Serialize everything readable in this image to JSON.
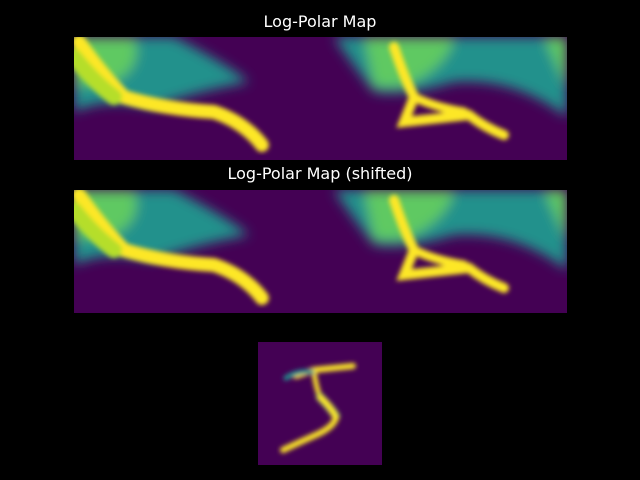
{
  "figure": {
    "background": "#000000",
    "text_color": "#ffffff"
  },
  "chart_data": [
    {
      "type": "heatmap",
      "title": "Log-Polar Map",
      "colormap": "viridis",
      "axes": "off",
      "features": [
        {
          "name": "left-curve",
          "color_level": 1.0
        },
        {
          "name": "right-branch",
          "color_level": 1.0
        },
        {
          "name": "background",
          "color_level": 0.0
        }
      ]
    },
    {
      "type": "heatmap",
      "title": "Log-Polar Map (shifted)",
      "colormap": "viridis",
      "axes": "off",
      "features": [
        {
          "name": "left-curve",
          "color_level": 1.0
        },
        {
          "name": "right-branch",
          "color_level": 1.0
        },
        {
          "name": "background",
          "color_level": 0.0
        }
      ]
    },
    {
      "type": "heatmap",
      "title": "",
      "colormap": "viridis",
      "axes": "off",
      "content": "handwritten digit 5",
      "grid_size": [
        28,
        28
      ]
    }
  ]
}
